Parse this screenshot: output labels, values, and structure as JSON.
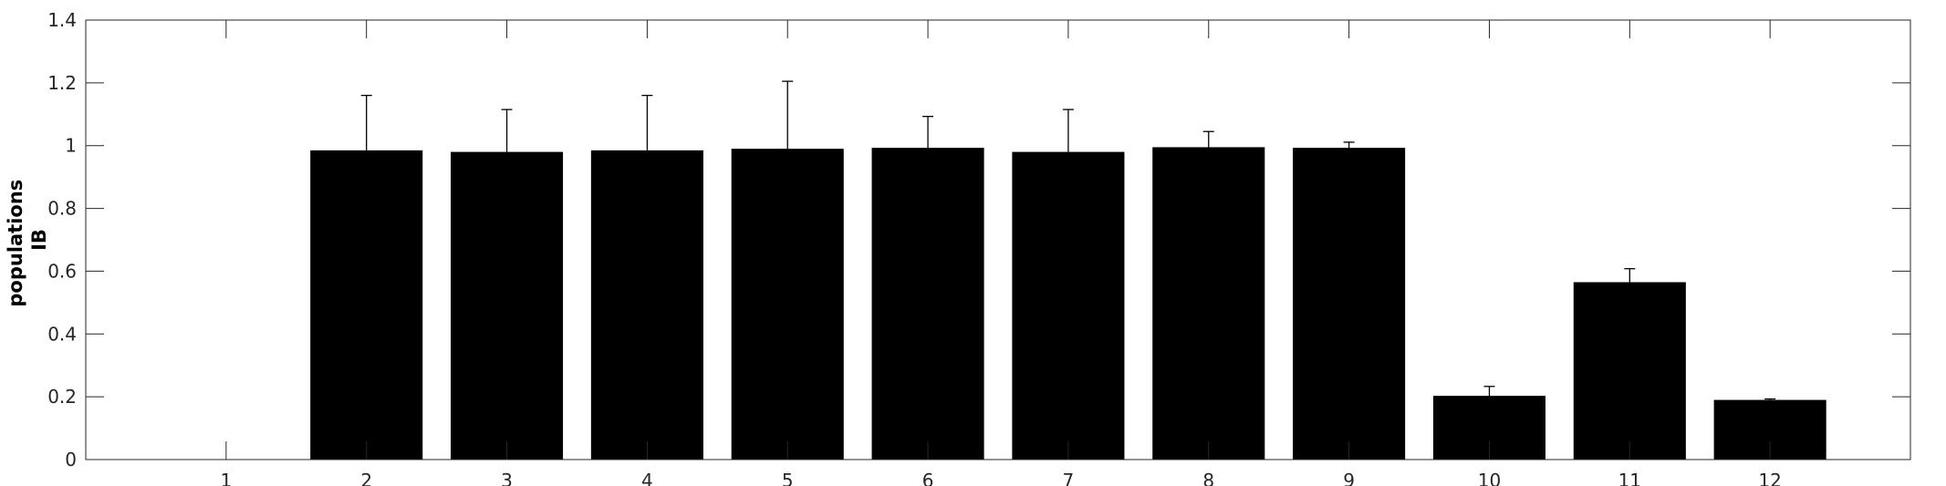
{
  "chart_data": {
    "type": "bar",
    "title": "",
    "xlabel": "",
    "ylabel": [
      "populations",
      "IB"
    ],
    "categories": [
      "1",
      "2",
      "3",
      "4",
      "5",
      "6",
      "7",
      "8",
      "9",
      "10",
      "11",
      "12"
    ],
    "values": [
      0,
      0.985,
      0.98,
      0.985,
      0.99,
      0.993,
      0.98,
      0.995,
      0.993,
      0.203,
      0.565,
      0.19
    ],
    "errors": [
      0,
      0.175,
      0.135,
      0.175,
      0.215,
      0.1,
      0.135,
      0.05,
      0.018,
      0.03,
      0.043,
      0.003
    ],
    "xlim": [
      0,
      13
    ],
    "ylim": [
      0,
      1.4
    ],
    "yticks": [
      0,
      0.2,
      0.4,
      0.6,
      0.8,
      1,
      1.2,
      1.4
    ],
    "ytick_labels": [
      "0",
      "0.2",
      "0.4",
      "0.6",
      "0.8",
      "1",
      "1.2",
      "1.4"
    ],
    "grid": false,
    "bar_color": "#000000",
    "error_bar_color": "#000000"
  }
}
